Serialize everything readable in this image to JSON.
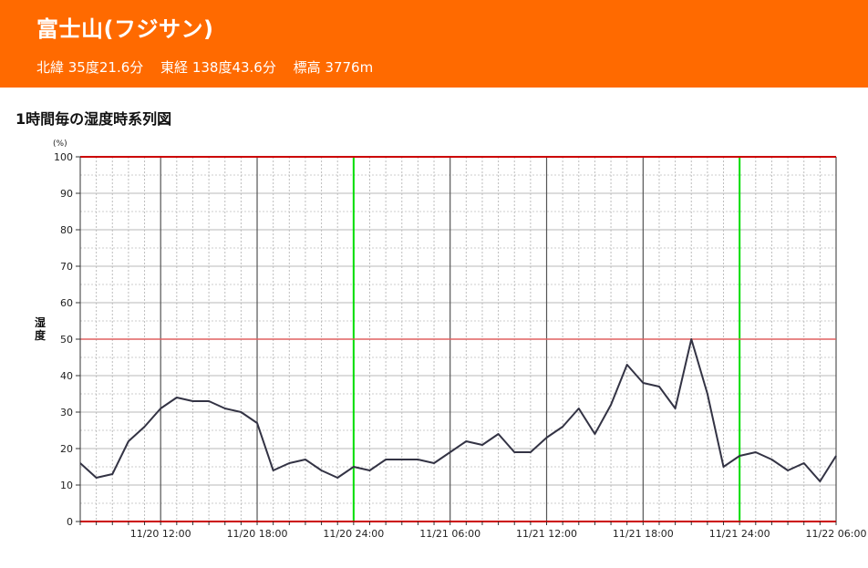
{
  "header": {
    "station_name": "富士山(フジサン)",
    "latitude": "北緯 35度21.6分",
    "longitude": "東経 138度43.6分",
    "elevation": "標高 3776m"
  },
  "colors": {
    "header_bg": "#ff6a00",
    "line": "#333344",
    "day_gridline": "#00dd00",
    "limit_line": "#cc0000",
    "mid_line": "#e06060"
  },
  "chart_data": {
    "type": "line",
    "title": "1時間毎の湿度時系列図",
    "ylabel": "湿度",
    "yunit": "(%)",
    "ylim": [
      0,
      100
    ],
    "yticks": [
      0,
      10,
      20,
      30,
      40,
      50,
      60,
      70,
      80,
      90,
      100
    ],
    "x_start": "2024-11-20 07:00",
    "x_end": "2024-11-22 06:00",
    "x_tick_labels": [
      {
        "time": "2024-11-20 12:00",
        "label": "11/20 12:00"
      },
      {
        "time": "2024-11-20 18:00",
        "label": "11/20 18:00"
      },
      {
        "time": "2024-11-21 00:00",
        "label": "11/20 24:00"
      },
      {
        "time": "2024-11-21 06:00",
        "label": "11/21 06:00"
      },
      {
        "time": "2024-11-21 12:00",
        "label": "11/21 12:00"
      },
      {
        "time": "2024-11-21 18:00",
        "label": "11/21 18:00"
      },
      {
        "time": "2024-11-22 00:00",
        "label": "11/21 24:00"
      },
      {
        "time": "2024-11-22 06:00",
        "label": "11/22 06:00"
      }
    ],
    "grid": true,
    "series": [
      {
        "values": [
          16,
          12,
          13,
          22,
          26,
          31,
          34,
          33,
          33,
          31,
          30,
          27,
          14,
          16,
          17,
          14,
          12,
          15,
          14,
          17,
          17,
          17,
          16,
          19,
          22,
          21,
          24,
          19,
          19,
          23,
          26,
          31,
          24,
          32,
          43,
          38,
          37,
          31,
          50,
          35,
          15,
          18,
          19,
          17,
          14,
          16,
          11,
          18
        ]
      }
    ]
  }
}
